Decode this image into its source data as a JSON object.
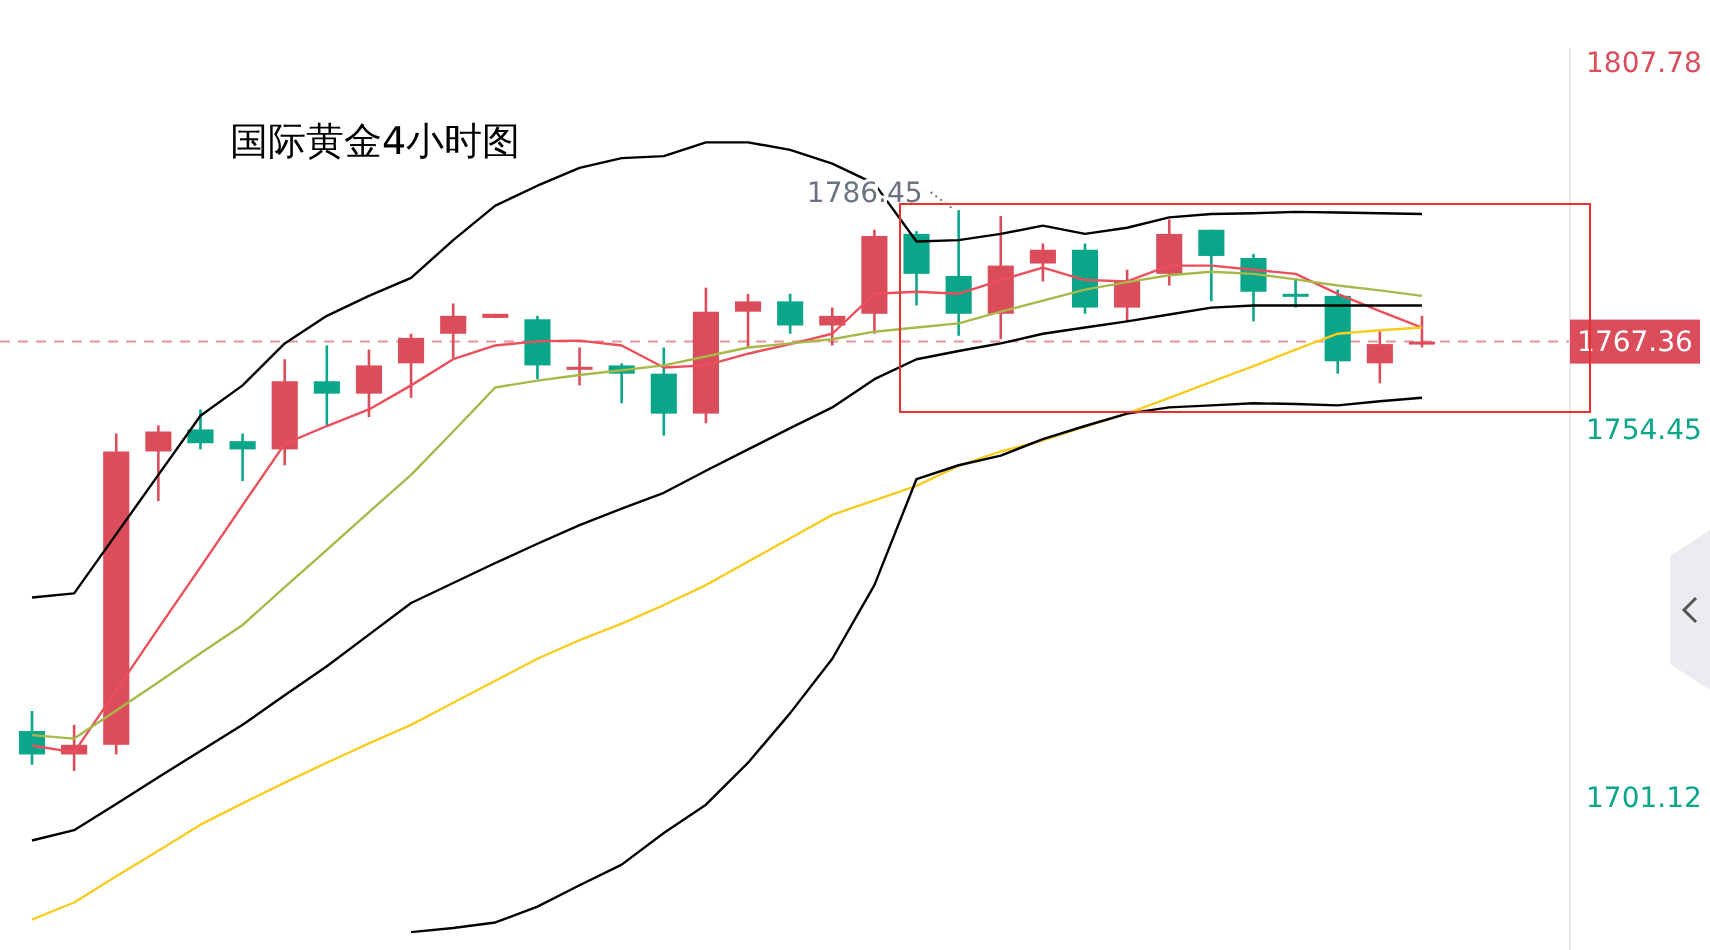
{
  "chart_data": {
    "type": "candlestick",
    "title": "国际黄金4小时图",
    "categories": [
      null,
      null,
      null,
      null,
      null,
      null,
      null,
      null,
      null,
      null,
      null,
      null,
      null,
      null,
      null,
      null,
      null,
      null,
      null,
      null,
      null,
      null,
      null,
      null,
      null,
      null,
      null,
      null,
      null,
      null,
      null,
      null,
      null,
      null
    ],
    "ohlc": [
      [
        1710.8,
        1713.7,
        1705.9,
        1707.4
      ],
      [
        1707.4,
        1711.7,
        1705.0,
        1708.8
      ],
      [
        1708.8,
        1754.0,
        1707.4,
        1751.4
      ],
      [
        1751.4,
        1755.2,
        1744.2,
        1754.3
      ],
      [
        1754.6,
        1757.5,
        1751.7,
        1752.6
      ],
      [
        1752.9,
        1754.0,
        1747.1,
        1751.7
      ],
      [
        1751.7,
        1764.8,
        1749.4,
        1761.6
      ],
      [
        1761.6,
        1766.8,
        1755.2,
        1759.8
      ],
      [
        1759.8,
        1766.2,
        1756.4,
        1763.9
      ],
      [
        1764.2,
        1768.5,
        1759.2,
        1767.9
      ],
      [
        1768.5,
        1772.9,
        1765.0,
        1771.1
      ],
      [
        1770.8,
        1771.4,
        1770.8,
        1771.4
      ],
      [
        1770.6,
        1771.1,
        1761.9,
        1763.9
      ],
      [
        1763.5,
        1766.5,
        1761.0,
        1763.7
      ],
      [
        1763.9,
        1764.2,
        1758.4,
        1762.7
      ],
      [
        1762.7,
        1766.5,
        1753.7,
        1756.9
      ],
      [
        1756.9,
        1775.2,
        1755.5,
        1771.7
      ],
      [
        1771.7,
        1774.3,
        1766.5,
        1773.2
      ],
      [
        1773.2,
        1774.3,
        1768.5,
        1769.7
      ],
      [
        1769.7,
        1772.3,
        1766.8,
        1771.1
      ],
      [
        1771.4,
        1783.6,
        1768.5,
        1782.7
      ],
      [
        1783.0,
        1783.4,
        1772.6,
        1777.2
      ],
      [
        1776.9,
        1786.45,
        1768.2,
        1771.4
      ],
      [
        1771.4,
        1785.6,
        1767.7,
        1778.4
      ],
      [
        1778.7,
        1781.6,
        1776.1,
        1780.7
      ],
      [
        1780.7,
        1781.6,
        1771.4,
        1772.3
      ],
      [
        1772.3,
        1777.8,
        1770.3,
        1776.3
      ],
      [
        1777.2,
        1785.1,
        1775.5,
        1783.0
      ],
      [
        1783.6,
        1783.6,
        1773.2,
        1779.8
      ],
      [
        1779.5,
        1780.1,
        1770.3,
        1774.6
      ],
      [
        1774.3,
        1776.6,
        1772.3,
        1774.0
      ],
      [
        1774.0,
        1774.9,
        1762.7,
        1764.5
      ],
      [
        1764.2,
        1769.1,
        1761.3,
        1767.0
      ],
      [
        1767.2,
        1771.1,
        1766.5,
        1767.36
      ]
    ],
    "colors": [
      "#0aa68a",
      "#dc4d5b",
      "#dc4d5b",
      "#dc4d5b",
      "#0aa68a",
      "#0aa68a",
      "#dc4d5b",
      "#0aa68a",
      "#dc4d5b",
      "#dc4d5b",
      "#dc4d5b",
      "#dc4d5b",
      "#0aa68a",
      "#dc4d5b",
      "#0aa68a",
      "#0aa68a",
      "#dc4d5b",
      "#dc4d5b",
      "#0aa68a",
      "#dc4d5b",
      "#dc4d5b",
      "#0aa68a",
      "#0aa68a",
      "#dc4d5b",
      "#dc4d5b",
      "#0aa68a",
      "#dc4d5b",
      "#dc4d5b",
      "#0aa68a",
      "#0aa68a",
      "#0aa68a",
      "#0aa68a",
      "#dc4d5b",
      "#dc4d5b"
    ],
    "series": [
      {
        "type": "line",
        "color": "#ea4f5c",
        "values": [
          1708.7,
          1707.7,
          1716.7,
          1725.7,
          1734.6,
          1743.6,
          1752.5,
          1755.1,
          1757.5,
          1761.0,
          1764.8,
          1766.8,
          1767.4,
          1767.5,
          1766.8,
          1763.6,
          1763.9,
          1765.6,
          1767.0,
          1768.5,
          1774.3,
          1774.6,
          1774.3,
          1776.3,
          1778.1,
          1776.3,
          1776.1,
          1778.4,
          1778.4,
          1777.8,
          1777.2,
          1774.3,
          1771.8,
          1769.4
        ]
      },
      {
        "type": "line",
        "color": "#a8b84a",
        "values": [
          1710.2,
          1709.7,
          1713.8,
          1717.9,
          1722.1,
          1726.2,
          1731.7,
          1737.1,
          1742.6,
          1748.0,
          1754.3,
          1760.7,
          1761.7,
          1762.5,
          1763.2,
          1763.9,
          1765.2,
          1766.5,
          1767.1,
          1767.7,
          1768.8,
          1769.4,
          1770.0,
          1771.7,
          1773.3,
          1774.9,
          1776.0,
          1777.0,
          1777.5,
          1777.2,
          1776.4,
          1775.5,
          1774.8,
          1774.0
        ]
      },
      {
        "type": "line",
        "color": "#f7cd22",
        "values": [
          1683.4,
          1685.9,
          1689.7,
          1693.4,
          1697.2,
          1700.3,
          1703.3,
          1706.2,
          1709.0,
          1711.7,
          1714.9,
          1718.1,
          1721.3,
          1724.0,
          1726.4,
          1729.1,
          1732.0,
          1735.4,
          1738.8,
          1742.2,
          1744.3,
          1746.4,
          1749.3,
          1751.4,
          1753.0,
          1755.0,
          1756.9,
          1759.2,
          1761.5,
          1763.8,
          1766.2,
          1768.5,
          1769.0,
          1769.4
        ]
      },
      {
        "type": "line",
        "color": "#000000",
        "values": [
          1730.2,
          1730.8,
          1739.4,
          1748.0,
          1756.6,
          1761.0,
          1767.1,
          1771.1,
          1774.0,
          1776.6,
          1782.1,
          1787.1,
          1790.0,
          1792.6,
          1794.0,
          1794.3,
          1796.3,
          1796.3,
          1795.2,
          1793.2,
          1790.3,
          1781.9,
          1782.1,
          1783.0,
          1784.2,
          1783.0,
          1783.9,
          1785.4,
          1785.9,
          1786.0,
          1786.2,
          1786.1,
          1786.0,
          1785.9
        ]
      },
      {
        "type": "line",
        "color": "#000000",
        "values": [
          1694.9,
          1696.4,
          1700.2,
          1704.1,
          1707.9,
          1711.7,
          1716.0,
          1720.2,
          1724.8,
          1729.4,
          1732.3,
          1735.2,
          1738.0,
          1740.7,
          1743.1,
          1745.4,
          1748.6,
          1751.7,
          1754.8,
          1757.8,
          1761.9,
          1764.8,
          1766.0,
          1767.1,
          1768.5,
          1769.4,
          1770.3,
          1771.3,
          1772.3,
          1772.6,
          1772.6,
          1772.6,
          1772.6,
          1772.6
        ]
      },
      {
        "type": "line",
        "color": "#000000",
        "values": [
          null,
          null,
          null,
          null,
          null,
          null,
          null,
          null,
          null,
          1681.6,
          1682.2,
          1683.0,
          1685.3,
          1688.4,
          1691.4,
          1696.0,
          1700.1,
          1706.2,
          1713.4,
          1721.3,
          1732.0,
          1747.4,
          1749.4,
          1750.8,
          1753.2,
          1755.1,
          1756.9,
          1757.8,
          1758.1,
          1758.4,
          1758.3,
          1758.1,
          1758.7,
          1759.2
        ]
      }
    ],
    "ylim": [
      1679,
      1810
    ],
    "yticks": [
      1807.78,
      1754.45,
      1701.12
    ],
    "tick_labels": "y",
    "ref_lines": [
      {
        "axis": "y",
        "value": 1767.36,
        "label": "1767.36",
        "color": "#dc4d5b",
        "line_style": "dashed"
      }
    ],
    "annotations": [
      "1786.45"
    ]
  }
}
